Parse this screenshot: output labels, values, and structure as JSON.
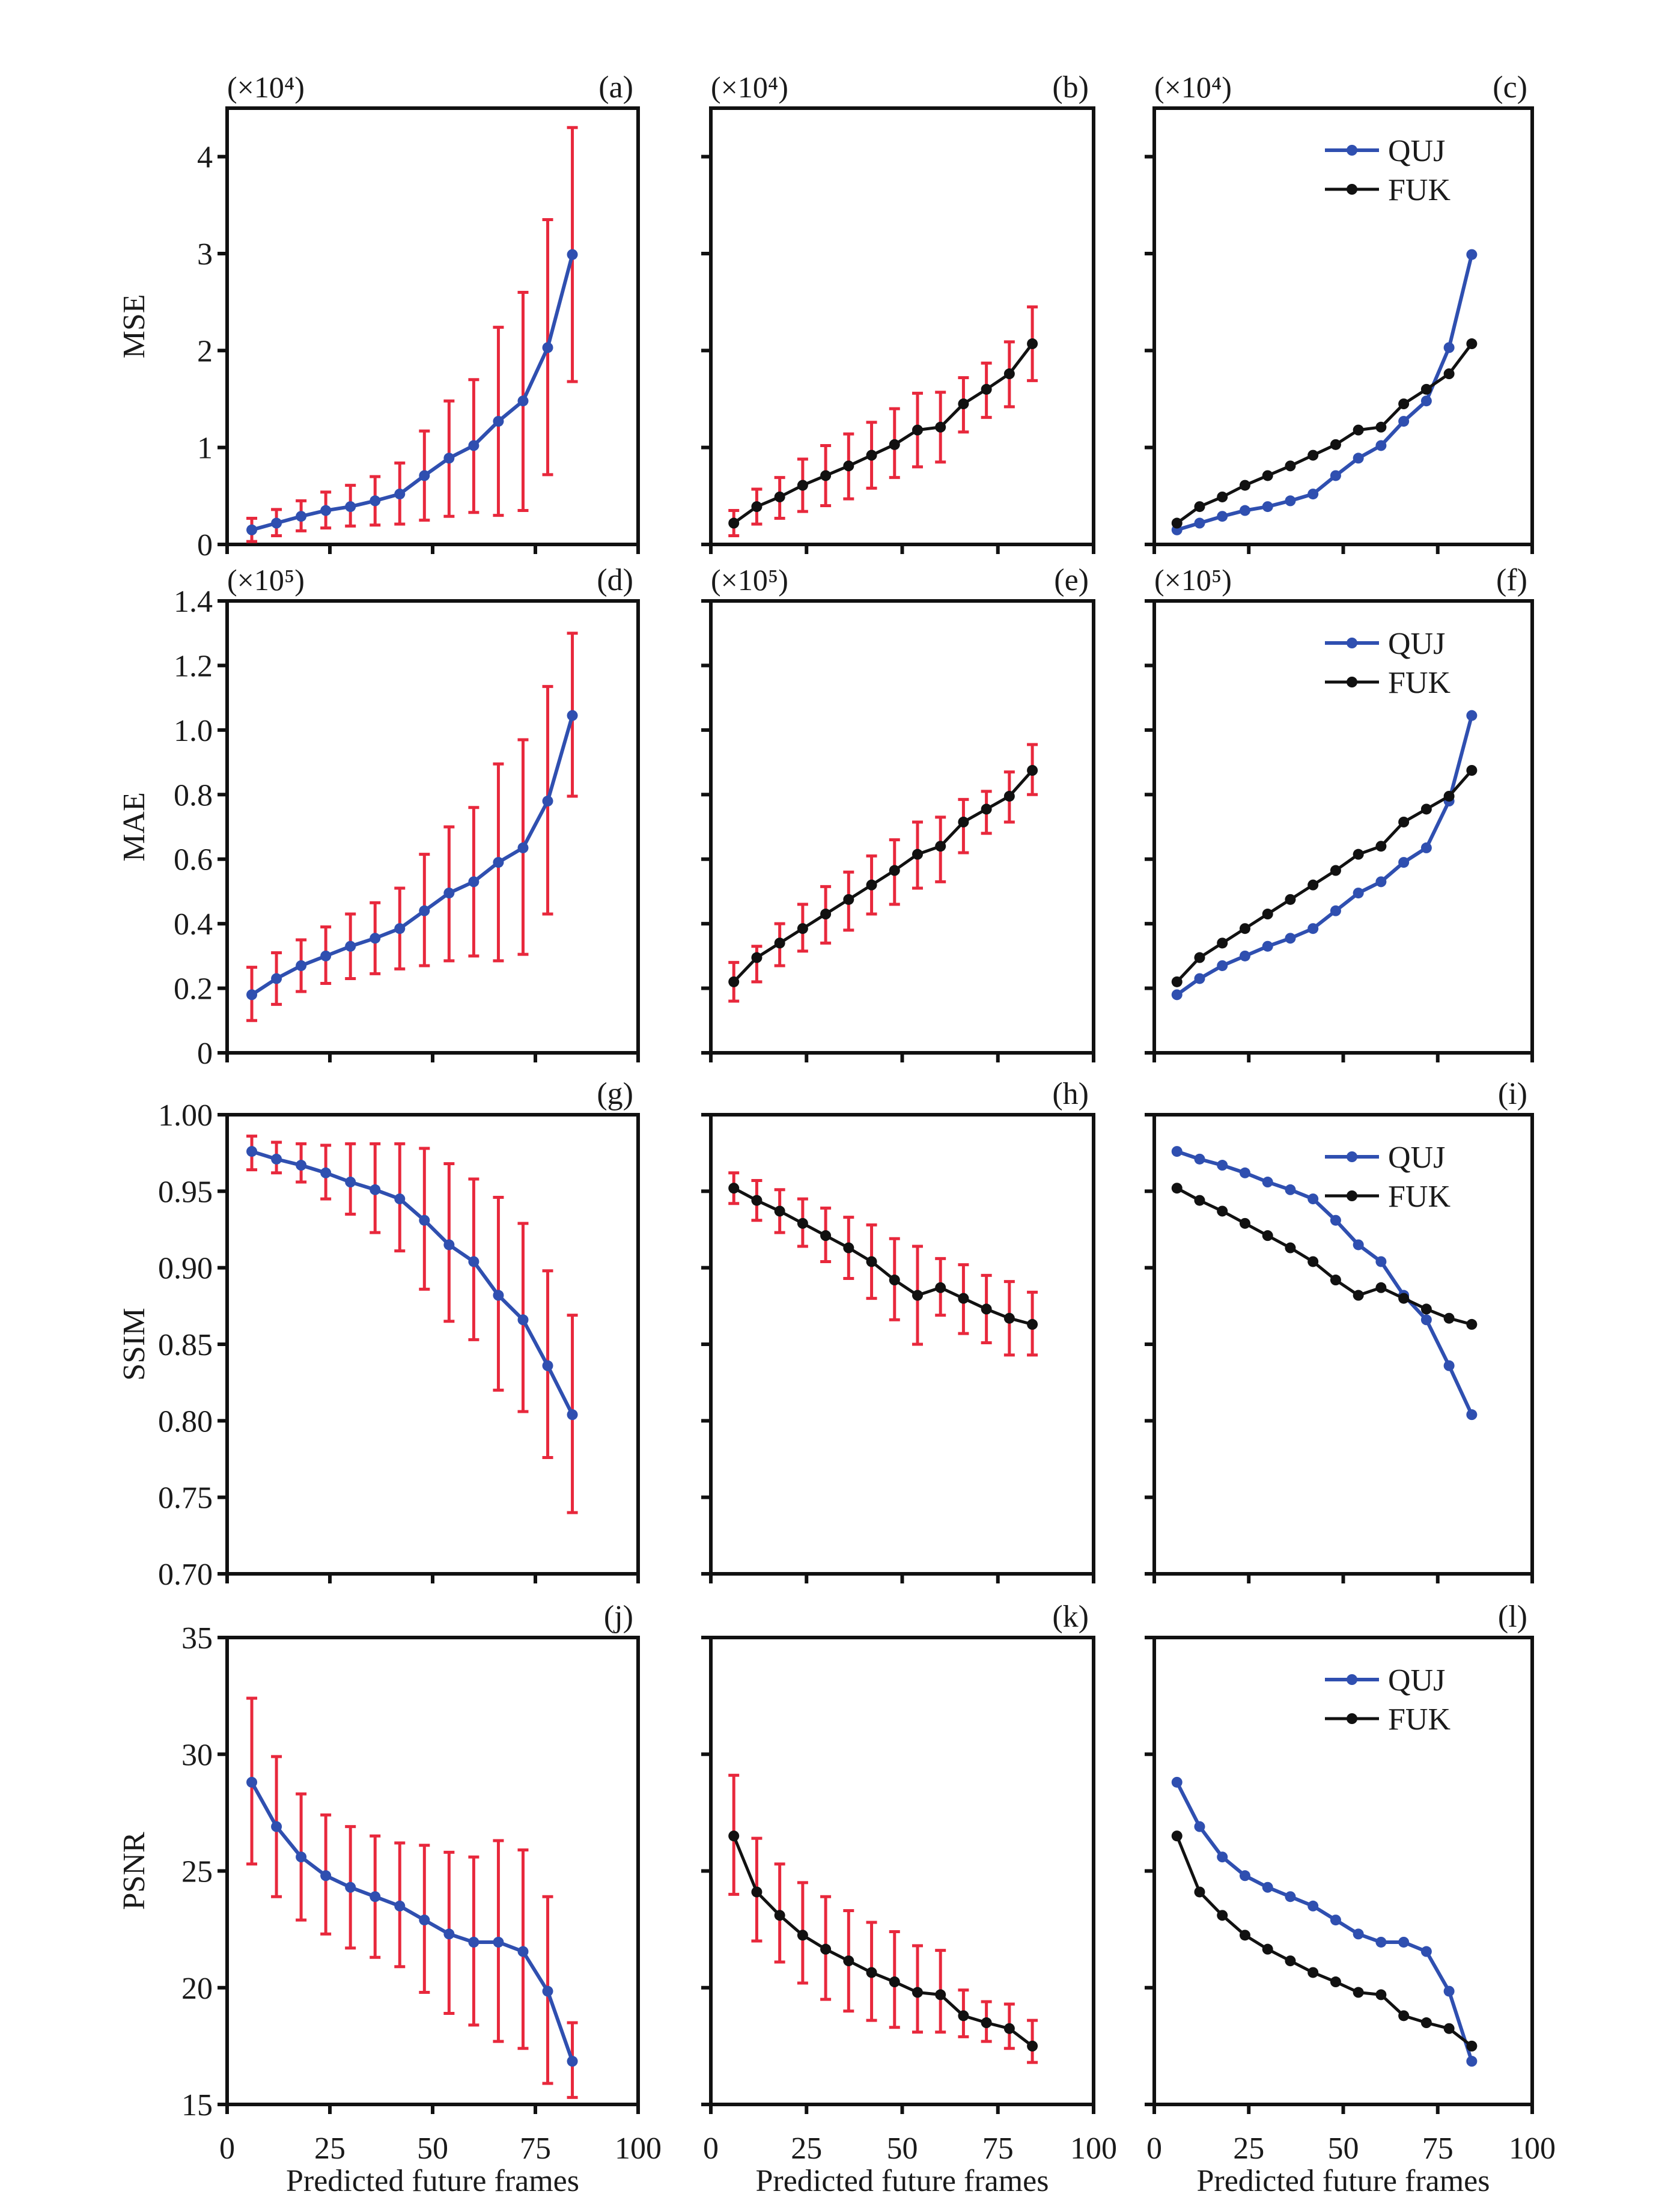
{
  "chart_data": {
    "type": "line",
    "title": "",
    "layout": "4 rows x 3 columns",
    "x": [
      6,
      12,
      18,
      24,
      30,
      36,
      42,
      48,
      54,
      60,
      66,
      72,
      78,
      84
    ],
    "xlabel": "Predicted future frames",
    "xlim": [
      0,
      100
    ],
    "xticks": [
      "0",
      "25",
      "50",
      "75",
      "100"
    ],
    "colors": {
      "QUJ": "#2f4fb0",
      "FUK": "#111111",
      "error_bar": "#e8283c"
    },
    "legend": {
      "entries": [
        "QUJ",
        "FUK"
      ],
      "placement": "top-right"
    },
    "rows": [
      {
        "metric": "MSE",
        "scale_note": "(×10⁴)",
        "ylim": [
          0,
          4.5
        ],
        "yticks": [
          "0",
          "1",
          "2",
          "3",
          "4"
        ],
        "ytick_values": [
          0,
          1,
          2,
          3,
          4
        ],
        "QUJ": {
          "mean": [
            0.15,
            0.22,
            0.29,
            0.35,
            0.39,
            0.45,
            0.52,
            0.71,
            0.89,
            1.02,
            1.27,
            1.48,
            2.03,
            2.99
          ],
          "err_low": [
            0.03,
            0.09,
            0.14,
            0.17,
            0.19,
            0.2,
            0.21,
            0.25,
            0.29,
            0.33,
            0.3,
            0.35,
            0.72,
            1.68
          ],
          "err_high": [
            0.27,
            0.36,
            0.45,
            0.54,
            0.61,
            0.7,
            0.84,
            1.17,
            1.48,
            1.7,
            2.24,
            2.6,
            3.35,
            4.3
          ]
        },
        "FUK": {
          "mean": [
            0.22,
            0.39,
            0.49,
            0.61,
            0.71,
            0.81,
            0.92,
            1.03,
            1.18,
            1.21,
            1.45,
            1.6,
            1.76,
            2.07
          ],
          "err_low": [
            0.09,
            0.21,
            0.27,
            0.34,
            0.4,
            0.47,
            0.58,
            0.69,
            0.8,
            0.85,
            1.16,
            1.31,
            1.42,
            1.69
          ],
          "err_high": [
            0.35,
            0.57,
            0.69,
            0.88,
            1.02,
            1.14,
            1.26,
            1.4,
            1.56,
            1.57,
            1.72,
            1.87,
            2.09,
            2.45
          ]
        },
        "panels": [
          "(a)",
          "(b)",
          "(c)"
        ]
      },
      {
        "metric": "MAE",
        "scale_note": "(×10⁵)",
        "ylim": [
          0,
          1.4
        ],
        "yticks": [
          "0",
          "0.2",
          "0.4",
          "0.6",
          "0.8",
          "1.0",
          "1.2",
          "1.4"
        ],
        "ytick_values": [
          0,
          0.2,
          0.4,
          0.6,
          0.8,
          1.0,
          1.2,
          1.4
        ],
        "QUJ": {
          "mean": [
            0.18,
            0.23,
            0.27,
            0.3,
            0.33,
            0.355,
            0.385,
            0.44,
            0.495,
            0.53,
            0.59,
            0.635,
            0.78,
            1.045
          ],
          "err_low": [
            0.1,
            0.15,
            0.19,
            0.215,
            0.23,
            0.245,
            0.26,
            0.27,
            0.285,
            0.3,
            0.285,
            0.305,
            0.43,
            0.795
          ],
          "err_high": [
            0.265,
            0.31,
            0.35,
            0.39,
            0.43,
            0.465,
            0.51,
            0.615,
            0.7,
            0.76,
            0.895,
            0.97,
            1.135,
            1.3
          ]
        },
        "FUK": {
          "mean": [
            0.22,
            0.295,
            0.34,
            0.385,
            0.43,
            0.475,
            0.52,
            0.565,
            0.615,
            0.64,
            0.715,
            0.755,
            0.795,
            0.875
          ],
          "err_low": [
            0.16,
            0.22,
            0.27,
            0.315,
            0.34,
            0.38,
            0.43,
            0.46,
            0.51,
            0.53,
            0.62,
            0.68,
            0.715,
            0.8
          ],
          "err_high": [
            0.28,
            0.33,
            0.4,
            0.46,
            0.515,
            0.56,
            0.61,
            0.66,
            0.715,
            0.73,
            0.785,
            0.81,
            0.87,
            0.955
          ]
        },
        "panels": [
          "(d)",
          "(e)",
          "(f)"
        ]
      },
      {
        "metric": "SSIM",
        "scale_note": "",
        "ylim": [
          0.7,
          1.0
        ],
        "yticks": [
          "0.70",
          "0.75",
          "0.80",
          "0.85",
          "0.90",
          "0.95",
          "1.00"
        ],
        "ytick_values": [
          0.7,
          0.75,
          0.8,
          0.85,
          0.9,
          0.95,
          1.0
        ],
        "QUJ": {
          "mean": [
            0.976,
            0.971,
            0.967,
            0.962,
            0.956,
            0.951,
            0.945,
            0.931,
            0.915,
            0.904,
            0.882,
            0.866,
            0.836,
            0.804
          ],
          "err_low": [
            0.964,
            0.962,
            0.956,
            0.945,
            0.935,
            0.923,
            0.911,
            0.886,
            0.865,
            0.853,
            0.82,
            0.806,
            0.776,
            0.74
          ],
          "err_high": [
            0.986,
            0.982,
            0.981,
            0.98,
            0.981,
            0.981,
            0.981,
            0.978,
            0.968,
            0.958,
            0.946,
            0.929,
            0.898,
            0.869
          ]
        },
        "FUK": {
          "mean": [
            0.952,
            0.944,
            0.937,
            0.929,
            0.921,
            0.913,
            0.904,
            0.892,
            0.882,
            0.887,
            0.88,
            0.873,
            0.867,
            0.863
          ],
          "err_low": [
            0.942,
            0.931,
            0.923,
            0.914,
            0.904,
            0.893,
            0.88,
            0.866,
            0.85,
            0.869,
            0.857,
            0.851,
            0.843,
            0.843
          ],
          "err_high": [
            0.962,
            0.957,
            0.951,
            0.945,
            0.939,
            0.933,
            0.928,
            0.919,
            0.914,
            0.906,
            0.902,
            0.895,
            0.891,
            0.884
          ]
        },
        "panels": [
          "(g)",
          "(h)",
          "(i)"
        ]
      },
      {
        "metric": "PSNR",
        "scale_note": "",
        "ylim": [
          15,
          35
        ],
        "yticks": [
          "15",
          "20",
          "25",
          "30",
          "35"
        ],
        "ytick_values": [
          15,
          20,
          25,
          30,
          35
        ],
        "QUJ": {
          "mean": [
            28.8,
            26.9,
            25.6,
            24.8,
            24.3,
            23.9,
            23.5,
            22.9,
            22.3,
            21.95,
            21.95,
            21.55,
            19.85,
            16.85
          ],
          "err_low": [
            25.3,
            23.9,
            22.9,
            22.3,
            21.7,
            21.3,
            20.9,
            19.8,
            18.9,
            18.4,
            17.7,
            17.4,
            15.9,
            15.3
          ],
          "err_high": [
            32.4,
            29.9,
            28.3,
            27.4,
            26.9,
            26.5,
            26.2,
            26.1,
            25.8,
            25.6,
            26.3,
            25.9,
            23.9,
            18.5
          ]
        },
        "FUK": {
          "mean": [
            26.5,
            24.1,
            23.1,
            22.25,
            21.65,
            21.15,
            20.65,
            20.25,
            19.8,
            19.7,
            18.8,
            18.5,
            18.25,
            17.5
          ],
          "err_low": [
            24.0,
            22.0,
            21.1,
            20.2,
            19.5,
            19.0,
            18.6,
            18.3,
            18.1,
            18.1,
            17.9,
            17.7,
            17.4,
            16.8
          ],
          "err_high": [
            29.1,
            26.4,
            25.3,
            24.5,
            23.9,
            23.3,
            22.8,
            22.4,
            21.8,
            21.6,
            19.9,
            19.4,
            19.3,
            18.6
          ]
        },
        "panels": [
          "(j)",
          "(k)",
          "(l)"
        ]
      }
    ],
    "columns": [
      {
        "content": "QUJ with error bars",
        "series": [
          "QUJ"
        ],
        "error_bars": true,
        "legend": false
      },
      {
        "content": "FUK with error bars",
        "series": [
          "FUK"
        ],
        "error_bars": true,
        "legend": false
      },
      {
        "content": "QUJ vs FUK comparison",
        "series": [
          "QUJ",
          "FUK"
        ],
        "error_bars": false,
        "legend": true
      }
    ]
  }
}
